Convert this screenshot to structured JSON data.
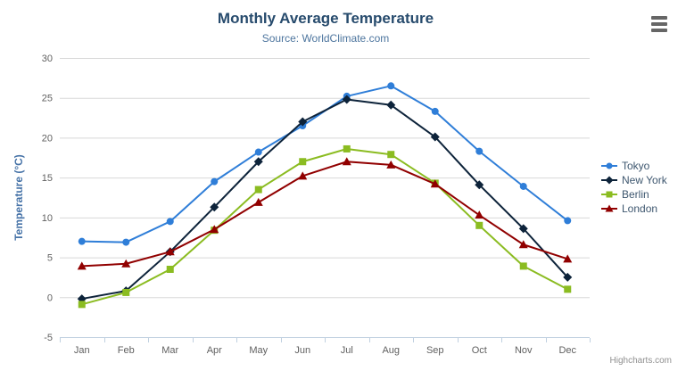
{
  "chart_data": {
    "type": "line",
    "title": "Monthly Average Temperature",
    "subtitle": "Source: WorldClimate.com",
    "categories": [
      "Jan",
      "Feb",
      "Mar",
      "Apr",
      "May",
      "Jun",
      "Jul",
      "Aug",
      "Sep",
      "Oct",
      "Nov",
      "Dec"
    ],
    "xlabel": "",
    "ylabel": "Temperature (°C)",
    "ylim": [
      -5,
      30
    ],
    "y_tick_interval": 5,
    "grid": true,
    "legend_position": "right",
    "series": [
      {
        "name": "Tokyo",
        "color": "#2f7ed8",
        "marker": "circle",
        "values": [
          7.0,
          6.9,
          9.5,
          14.5,
          18.2,
          21.5,
          25.2,
          26.5,
          23.3,
          18.3,
          13.9,
          9.6
        ]
      },
      {
        "name": "New York",
        "color": "#0d233a",
        "marker": "diamond",
        "values": [
          -0.2,
          0.8,
          5.7,
          11.3,
          17.0,
          22.0,
          24.8,
          24.1,
          20.1,
          14.1,
          8.6,
          2.5
        ]
      },
      {
        "name": "Berlin",
        "color": "#8bbc21",
        "marker": "square",
        "values": [
          -0.9,
          0.6,
          3.5,
          8.4,
          13.5,
          17.0,
          18.6,
          17.9,
          14.3,
          9.0,
          3.9,
          1.0
        ]
      },
      {
        "name": "London",
        "color": "#910000",
        "marker": "triangle",
        "values": [
          3.9,
          4.2,
          5.7,
          8.5,
          11.9,
          15.2,
          17.0,
          16.6,
          14.2,
          10.3,
          6.6,
          4.8
        ]
      }
    ],
    "credits": "Highcharts.com",
    "icons": {
      "context_menu": "hamburger-icon"
    },
    "colors": {
      "title": "#274b6d",
      "subtitle": "#4d759e",
      "axis_title": "#4572a7",
      "axis_label": "#606060",
      "gridline": "#d8d8d8",
      "axis_line": "#c0d0e0",
      "legend_text": "#3e576f",
      "credits": "#909090",
      "background": "#ffffff"
    }
  }
}
